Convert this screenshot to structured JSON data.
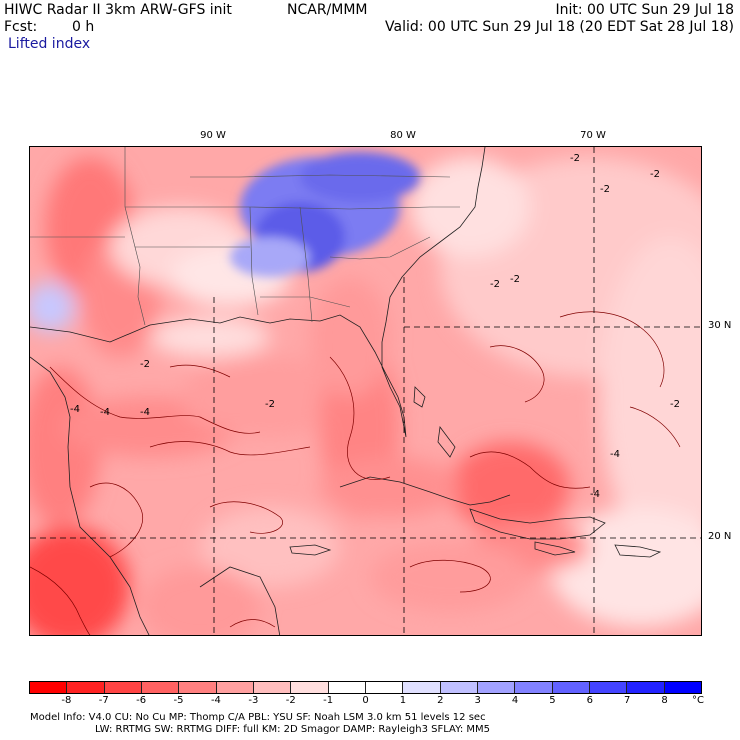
{
  "header": {
    "title": "HIWC Radar II 3km ARW-GFS init",
    "org": "NCAR/MMM",
    "init": "Init: 00 UTC Sun 29 Jul 18",
    "fcst_label": "Fcst:",
    "fcst_value": "0 h",
    "valid": "Valid: 00 UTC Sun 29 Jul 18 (20 EDT Sat 28 Jul 18)",
    "field": "Lifted index"
  },
  "map": {
    "lon_labels": [
      "90 W",
      "80 W",
      "70 W"
    ],
    "lat_labels": [
      "30 N",
      "20 N"
    ],
    "contour_label": "-2",
    "contour_labels_extra": [
      "-4",
      "-2",
      "-2",
      "-4",
      "-2",
      "-4",
      "-2",
      "-2",
      "-4",
      "-2",
      "-2",
      "-4"
    ]
  },
  "legend": {
    "colors": [
      "#ff0000",
      "#ff2222",
      "#ff4444",
      "#ff6262",
      "#ff8080",
      "#ffa0a0",
      "#ffbebe",
      "#ffdede",
      "#ffffff",
      "#ffffff",
      "#e0e0ff",
      "#c0c0ff",
      "#a2a2ff",
      "#8282ff",
      "#6262ff",
      "#4444ff",
      "#2222ff",
      "#0000ff"
    ],
    "ticks": [
      "-8",
      "-7",
      "-6",
      "-5",
      "-4",
      "-3",
      "-2",
      "-1",
      "0",
      "1",
      "2",
      "3",
      "4",
      "5",
      "6",
      "7",
      "8"
    ],
    "unit": "°C"
  },
  "footer": {
    "line1": "Model Info: V4.0      CU: No Cu     MP: Thomp C/A     PBL: YSU       SF: Noah LSM      3.0 km   51 levels     12 sec",
    "line2": "LW: RRTMG     SW: RRTMG   DIFF: full    KM: 2D Smagor DAMP: Rayleigh3   SFLAY: MM5"
  }
}
